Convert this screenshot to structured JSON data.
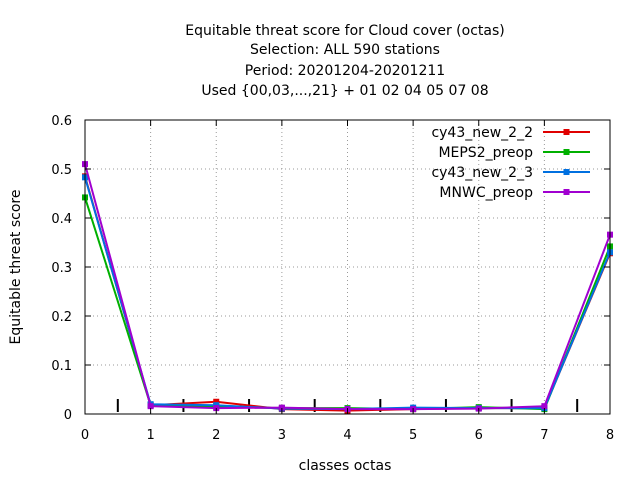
{
  "chart_data": {
    "type": "line",
    "title_lines": [
      "Equitable threat score  for Cloud cover (octas)",
      "Selection: ALL    590 stations",
      "Period: 20201204-20201211",
      "Used {00,03,...,21} + 01 02 04 05 07 08"
    ],
    "xlabel": "classes octas",
    "ylabel": "Equitable threat score",
    "xlim": [
      0,
      8
    ],
    "ylim": [
      0,
      0.6
    ],
    "xticks": [
      "0",
      "1",
      "2",
      "3",
      "4",
      "5",
      "6",
      "7",
      "8"
    ],
    "yticks": [
      "0",
      "0.1",
      "0.2",
      "0.3",
      "0.4",
      "0.5",
      "0.6"
    ],
    "grid": true,
    "legend_position": "top-right",
    "x": [
      0,
      1,
      2,
      3,
      4,
      5,
      6,
      7,
      8
    ],
    "series": [
      {
        "name": "cy43_new_2_2",
        "color": "#e00000",
        "values": [
          0.485,
          0.018,
          0.025,
          0.01,
          0.007,
          0.01,
          0.012,
          0.012,
          0.328
        ]
      },
      {
        "name": "MEPS2_preop",
        "color": "#00b000",
        "values": [
          0.442,
          0.018,
          0.015,
          0.012,
          0.012,
          0.01,
          0.014,
          0.01,
          0.342
        ]
      },
      {
        "name": "cy43_new_2_3",
        "color": "#0070e0",
        "values": [
          0.483,
          0.02,
          0.018,
          0.011,
          0.01,
          0.013,
          0.012,
          0.012,
          0.33
        ]
      },
      {
        "name": "MNWC_preop",
        "color": "#a000d0",
        "values": [
          0.51,
          0.016,
          0.012,
          0.013,
          0.01,
          0.01,
          0.011,
          0.016,
          0.366
        ]
      }
    ],
    "observation_ticks_x": [
      0.5,
      1.5,
      2.5,
      3.5,
      4.5,
      5.5,
      6.5,
      7.5
    ]
  }
}
